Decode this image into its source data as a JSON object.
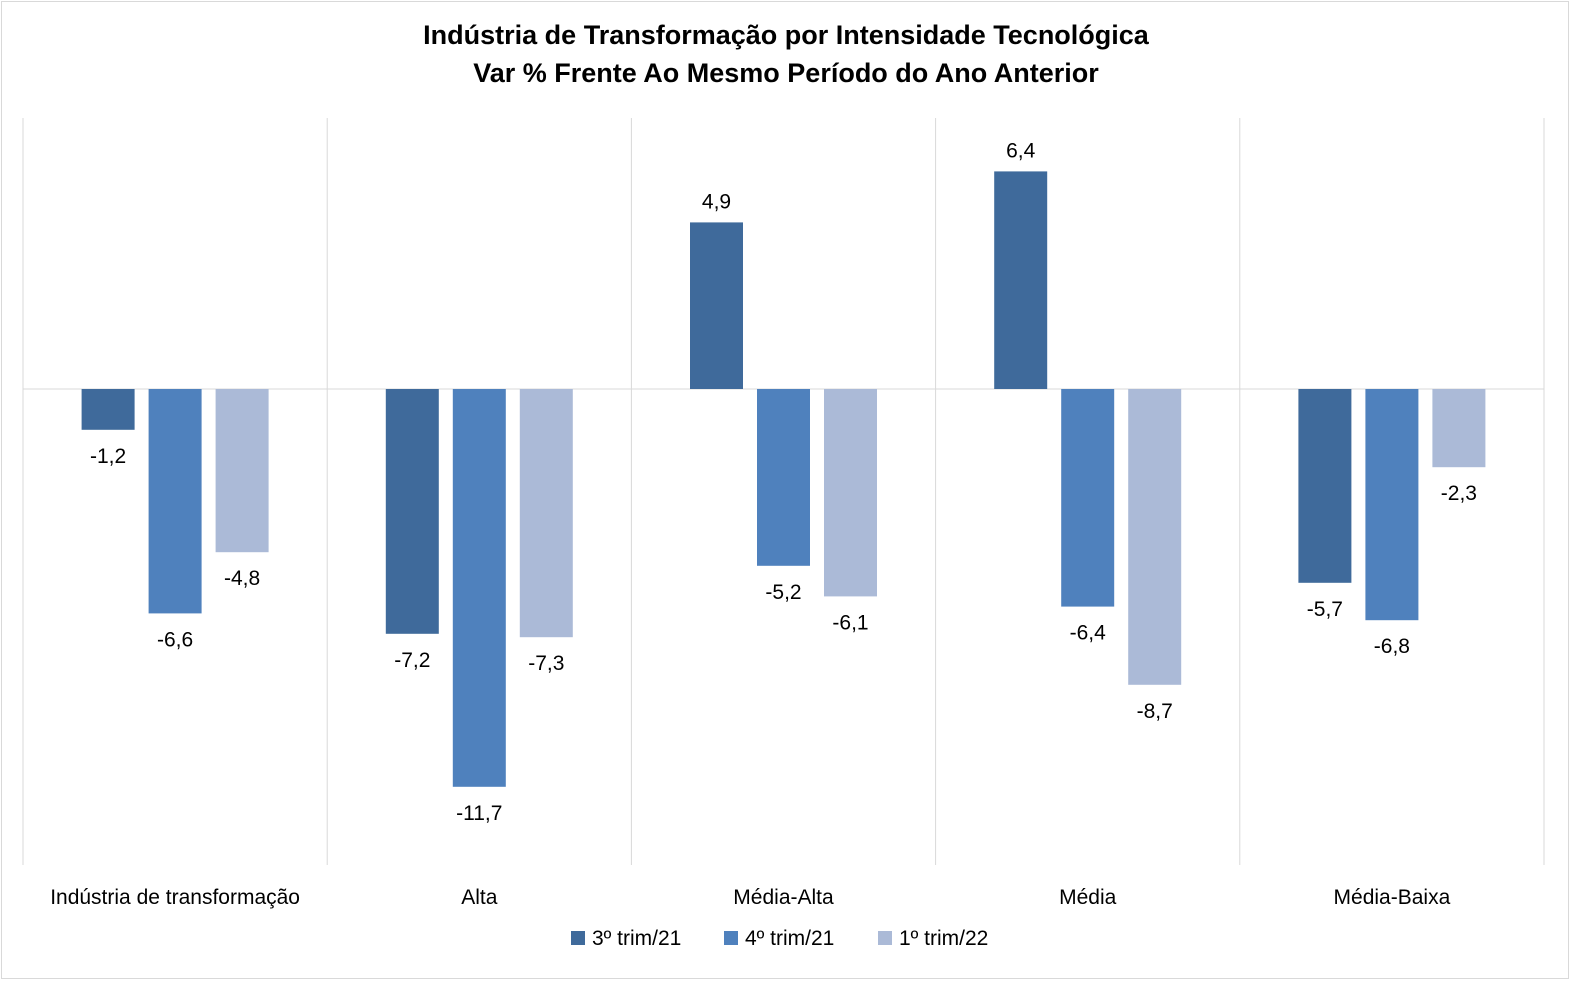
{
  "chart_data": {
    "type": "bar",
    "title": [
      "Indústria de Transformação por Intensidade Tecnológica",
      "Var % Frente Ao Mesmo Período do Ano Anterior"
    ],
    "categories": [
      "Indústria de transformação",
      "Alta",
      "Média-Alta",
      "Média",
      "Média-Baixa"
    ],
    "series": [
      {
        "name": "3º trim/21",
        "color": "#3f6a9b",
        "values": [
          -1.2,
          -7.2,
          4.9,
          6.4,
          -5.7
        ],
        "labels": [
          "-1,2",
          "-7,2",
          "4,9",
          "6,4",
          "-5,7"
        ]
      },
      {
        "name": "4º trim/21",
        "color": "#4f81bd",
        "values": [
          -6.6,
          -11.7,
          -5.2,
          -6.4,
          -6.8
        ],
        "labels": [
          "-6,6",
          "-11,7",
          "-5,2",
          "-6,4",
          "-6,8"
        ]
      },
      {
        "name": "1º trim/22",
        "color": "#abbad7",
        "values": [
          -4.8,
          -7.3,
          -6.1,
          -8.7,
          -2.3
        ],
        "labels": [
          "-4,8",
          "-7,3",
          "-6,1",
          "-8,7",
          "-2,3"
        ]
      }
    ],
    "ylim": [
      -14,
      8
    ],
    "legend": "bottom",
    "grid": "vertical category separators"
  }
}
